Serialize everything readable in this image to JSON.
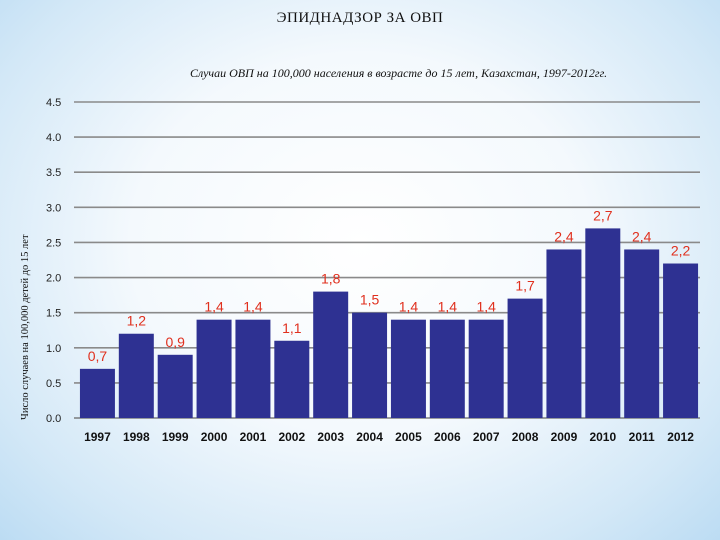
{
  "header": {
    "title": "ЭПИДНАДЗОР  ЗА ОВП"
  },
  "chart_data": {
    "type": "bar",
    "title": "Случаи ОВП на 100,000 населения в возрасте до 15 лет, Казахстан, 1997-2012гг.",
    "ylabel": "Число случаев на 100,000 детей до 15 лет",
    "xlabel": "",
    "categories": [
      "1997",
      "1998",
      "1999",
      "2000",
      "2001",
      "2002",
      "2003",
      "2004",
      "2005",
      "2006",
      "2007",
      "2008",
      "2009",
      "2010",
      "2011",
      "2012"
    ],
    "values": [
      0.7,
      1.2,
      0.9,
      1.4,
      1.4,
      1.1,
      1.8,
      1.5,
      1.4,
      1.4,
      1.4,
      1.7,
      2.4,
      2.7,
      2.4,
      2.2
    ],
    "value_labels": [
      "0,7",
      "1,2",
      "0,9",
      "1,4",
      "1,4",
      "1,1",
      "1,8",
      "1,5",
      "1,4",
      "1,4",
      "1,4",
      "1,7",
      "2,4",
      "2,7",
      "2,4",
      "2,2"
    ],
    "ylim": [
      0,
      4.5
    ],
    "yticks": [
      "0.0",
      "0.5",
      "1.0",
      "1.5",
      "2.0",
      "2.5",
      "3.0",
      "3.5",
      "4.0",
      "4.5"
    ],
    "grid": true,
    "bar_color": "#2e3192",
    "label_color": "#e0301e"
  }
}
